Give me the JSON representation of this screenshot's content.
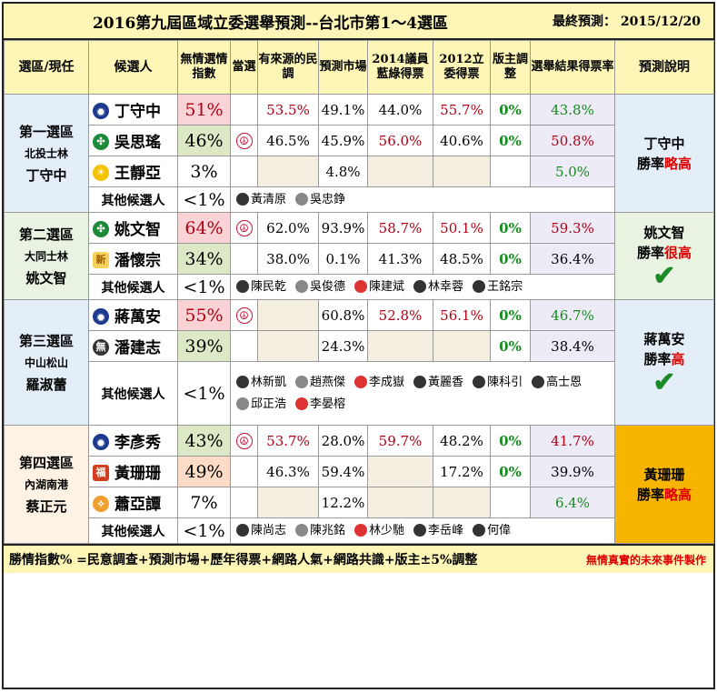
{
  "title": "2016第九屆區域立委選舉預測--台北市第1～4選區",
  "final_label": "最終預測：",
  "final_date": "2015/12/20",
  "headers": [
    "選區/現任",
    "候選人",
    "無情選情指數",
    "當選",
    "有來源的民調",
    "預測市場",
    "2014議員藍綠得票",
    "2012立委得票",
    "版主調整",
    "選舉結果得票率",
    "預測說明"
  ],
  "others_label": "其他候選人",
  "others_index": "<1%",
  "districts": [
    {
      "name": "第一選區",
      "area": "北投士林",
      "incumbent": "丁守中",
      "explain": {
        "who": "丁守中",
        "pre": "勝率",
        "tag": "略高"
      },
      "candidates": [
        {
          "name": "丁守中",
          "party": "kmt",
          "index": "51%",
          "win": "",
          "poll": "53.5%",
          "market": "49.1%",
          "council": "44.0%",
          "y2012": "55.7%",
          "adjust": "0%",
          "result": "43.8%"
        },
        {
          "name": "吳思瑤",
          "party": "dpp",
          "index": "46%",
          "win": "☮",
          "poll": "46.5%",
          "market": "45.9%",
          "council": "56.0%",
          "y2012": "40.6%",
          "adjust": "0%",
          "result": "50.8%"
        },
        {
          "name": "王靜亞",
          "party": "psp",
          "index": "3%",
          "win": "",
          "poll": "",
          "market": "4.8%",
          "council": "",
          "y2012": "",
          "adjust": "",
          "result": "5.0%"
        }
      ],
      "others": [
        "黃清原",
        "吳忠錚"
      ]
    },
    {
      "name": "第二選區",
      "area": "大同士林",
      "incumbent": "姚文智",
      "explain": {
        "who": "姚文智",
        "pre": "勝率",
        "tag": "很高"
      },
      "candidates": [
        {
          "name": "姚文智",
          "party": "dpp",
          "index": "64%",
          "win": "☮",
          "poll": "62.0%",
          "market": "93.9%",
          "council": "58.7%",
          "y2012": "50.1%",
          "adjust": "0%",
          "result": "59.3%"
        },
        {
          "name": "潘懷宗",
          "party": "np",
          "index": "34%",
          "win": "",
          "poll": "38.0%",
          "market": "0.1%",
          "council": "41.3%",
          "y2012": "48.5%",
          "adjust": "0%",
          "result": "36.4%"
        }
      ],
      "others": [
        "陳民乾",
        "吳俊德",
        "陳建斌",
        "林幸蓉",
        "王銘宗"
      ]
    },
    {
      "name": "第三選區",
      "area": "中山松山",
      "incumbent": "羅淑蕾",
      "explain": {
        "who": "蔣萬安",
        "pre": "勝率",
        "tag": "高"
      },
      "candidates": [
        {
          "name": "蔣萬安",
          "party": "kmt",
          "index": "55%",
          "win": "☮",
          "poll": "",
          "market": "60.8%",
          "council": "52.8%",
          "y2012": "56.1%",
          "adjust": "0%",
          "result": "46.7%"
        },
        {
          "name": "潘建志",
          "party": "blk",
          "index": "39%",
          "win": "",
          "poll": "",
          "market": "24.3%",
          "council": "",
          "y2012": "",
          "adjust": "0%",
          "result": "38.4%"
        }
      ],
      "others": [
        "林新凱",
        "趙燕傑",
        "李成嶽",
        "黃麗香",
        "陳科引",
        "高士恩",
        "邱正浩",
        "李晏榕"
      ]
    },
    {
      "name": "第四選區",
      "area": "內湖南港",
      "incumbent": "蔡正元",
      "explain": {
        "who": "黃珊珊",
        "pre": "勝率",
        "tag": "略高"
      },
      "candidates": [
        {
          "name": "李彥秀",
          "party": "kmt",
          "index": "43%",
          "win": "☮",
          "poll": "53.7%",
          "market": "28.0%",
          "council": "59.7%",
          "y2012": "48.2%",
          "adjust": "0%",
          "result": "41.7%"
        },
        {
          "name": "黃珊珊",
          "party": "ty",
          "index": "49%",
          "win": "",
          "poll": "46.3%",
          "market": "59.4%",
          "council": "",
          "y2012": "17.2%",
          "adjust": "0%",
          "result": "39.9%"
        },
        {
          "name": "蕭亞譚",
          "party": "mkt",
          "index": "7%",
          "win": "",
          "poll": "",
          "market": "12.2%",
          "council": "",
          "y2012": "",
          "adjust": "",
          "result": "6.4%"
        }
      ],
      "others": [
        "陳尚志",
        "陳兆銘",
        "林少馳",
        "李岳峰",
        "何偉"
      ]
    }
  ],
  "footer": "勝情指數% =民意調查+預測市場+歷年得票+網路人氣+網路共識+版主±5%調整",
  "footer_credit": "無情真實的未來事件製作"
}
